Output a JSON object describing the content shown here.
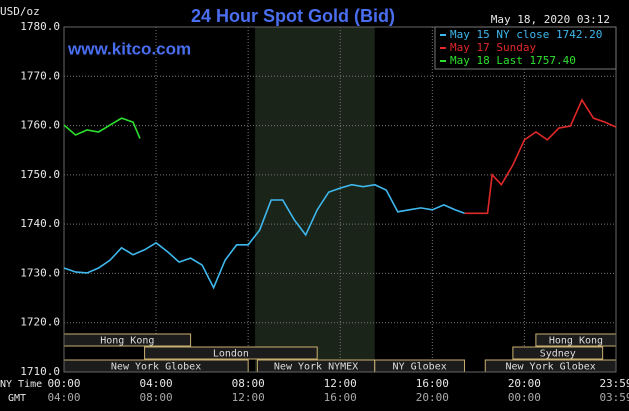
{
  "chart_data": {
    "type": "line",
    "title": "24 Hour Spot Gold (Bid)",
    "site": "www.kitco.com",
    "timestamp": "May 18, 2020 03:12",
    "y_label": "USD/oz",
    "x_label": "NY Time",
    "x2_label": "GMT",
    "xlim": [
      0,
      23.98
    ],
    "ylim": [
      1710,
      1780
    ],
    "yticks": [
      {
        "value": 1710,
        "label": "1710.0"
      },
      {
        "value": 1720,
        "label": "1720.0"
      },
      {
        "value": 1730,
        "label": "1730.0"
      },
      {
        "value": 1740,
        "label": "1740.0"
      },
      {
        "value": 1750,
        "label": "1750.0"
      },
      {
        "value": 1760,
        "label": "1760.0"
      },
      {
        "value": 1770,
        "label": "1770.0"
      },
      {
        "value": 1780,
        "label": "1780.0"
      }
    ],
    "xticks": [
      {
        "value": 0,
        "label": "00:00"
      },
      {
        "value": 4,
        "label": "04:00"
      },
      {
        "value": 8,
        "label": "08:00"
      },
      {
        "value": 12,
        "label": "12:00"
      },
      {
        "value": 16,
        "label": "16:00"
      },
      {
        "value": 20,
        "label": "20:00"
      },
      {
        "value": 23.98,
        "label": "23:59"
      }
    ],
    "x2ticks": [
      {
        "value": 0,
        "label": "04:00"
      },
      {
        "value": 4,
        "label": "08:00"
      },
      {
        "value": 8,
        "label": "12:00"
      },
      {
        "value": 12,
        "label": "16:00"
      },
      {
        "value": 16,
        "label": "20:00"
      },
      {
        "value": 20,
        "label": "00:00"
      },
      {
        "value": 23.98,
        "label": "03:59"
      }
    ],
    "grid": true,
    "highlight_x": [
      8.3,
      13.5
    ],
    "series": [
      {
        "name": "May 15 NY close 1742.20",
        "color": "#3fb8ee",
        "x": [
          0,
          0.5,
          1,
          1.5,
          2,
          2.5,
          3,
          3.5,
          4,
          4.5,
          5,
          5.5,
          6,
          6.5,
          7,
          7.5,
          8,
          8.5,
          9,
          9.5,
          10,
          10.5,
          11,
          11.5,
          12,
          12.5,
          13,
          13.5,
          14,
          14.5,
          15,
          15.5,
          16,
          16.5,
          17,
          17.4
        ],
        "values": [
          1731.1,
          1730.3,
          1730.1,
          1731.1,
          1732.7,
          1735.2,
          1733.8,
          1734.8,
          1736.2,
          1734.4,
          1732.3,
          1733.1,
          1731.7,
          1727.1,
          1732.7,
          1735.8,
          1735.8,
          1738.8,
          1744.9,
          1744.9,
          1740.9,
          1737.8,
          1742.9,
          1746.5,
          1747.3,
          1748.0,
          1747.6,
          1748.0,
          1746.9,
          1742.5,
          1742.9,
          1743.3,
          1742.9,
          1743.9,
          1742.9,
          1742.2
        ]
      },
      {
        "name": "May 17 Sunday",
        "color": "#e02828",
        "x": [
          17.4,
          18,
          18.4,
          18.6,
          19,
          19.5,
          20,
          20.5,
          21,
          21.5,
          22,
          22.5,
          23,
          23.5,
          23.98
        ],
        "values": [
          1742.2,
          1742.2,
          1742.2,
          1750.0,
          1748.0,
          1752.0,
          1757.1,
          1758.7,
          1757.1,
          1759.5,
          1759.9,
          1765.2,
          1761.5,
          1760.7,
          1759.7
        ]
      },
      {
        "name": "May 18 Last 1757.40",
        "color": "#2ee02e",
        "x": [
          0,
          0.5,
          1,
          1.5,
          2,
          2.5,
          3,
          3.3
        ],
        "values": [
          1760.1,
          1758.1,
          1759.1,
          1758.7,
          1760.1,
          1761.5,
          1760.7,
          1757.4
        ]
      }
    ],
    "session_rows": [
      [
        {
          "label": "Hong Kong",
          "start": 0,
          "end": 5.5
        },
        {
          "label": "Hong Kong",
          "start": 20.5,
          "end": 23.98
        }
      ],
      [
        {
          "label": "London",
          "start": 3.5,
          "end": 11
        },
        {
          "label": "Sydney",
          "start": 19.5,
          "end": 23.4
        }
      ],
      [
        {
          "label": "New York Globex",
          "start": 0,
          "end": 8
        },
        {
          "label": "New York NYMEX",
          "start": 8.4,
          "end": 13.5
        },
        {
          "label": "NY Globex",
          "start": 13.5,
          "end": 17.4
        },
        {
          "label": "New York Globex",
          "start": 18.3,
          "end": 23.98
        }
      ]
    ]
  }
}
